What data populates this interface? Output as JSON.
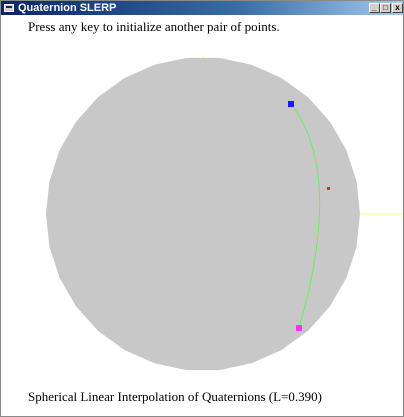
{
  "window": {
    "title": "Quaternion SLERP",
    "buttons": {
      "minimize": "_",
      "maximize": "□",
      "close": "x"
    }
  },
  "canvas": {
    "prompt": "Press any key to initialize another pair of points.",
    "caption_prefix": "Spherical Linear Interpolation of Quaternions (L=",
    "caption_value": "0.390",
    "caption_suffix": ")"
  },
  "colors": {
    "sphere": "#c8c8c8",
    "axis": "#ffff88",
    "arc": "#66ee66",
    "start_point": "#1a1aff",
    "end_point": "#ff33ff",
    "interp_point": "#ee2222"
  }
}
